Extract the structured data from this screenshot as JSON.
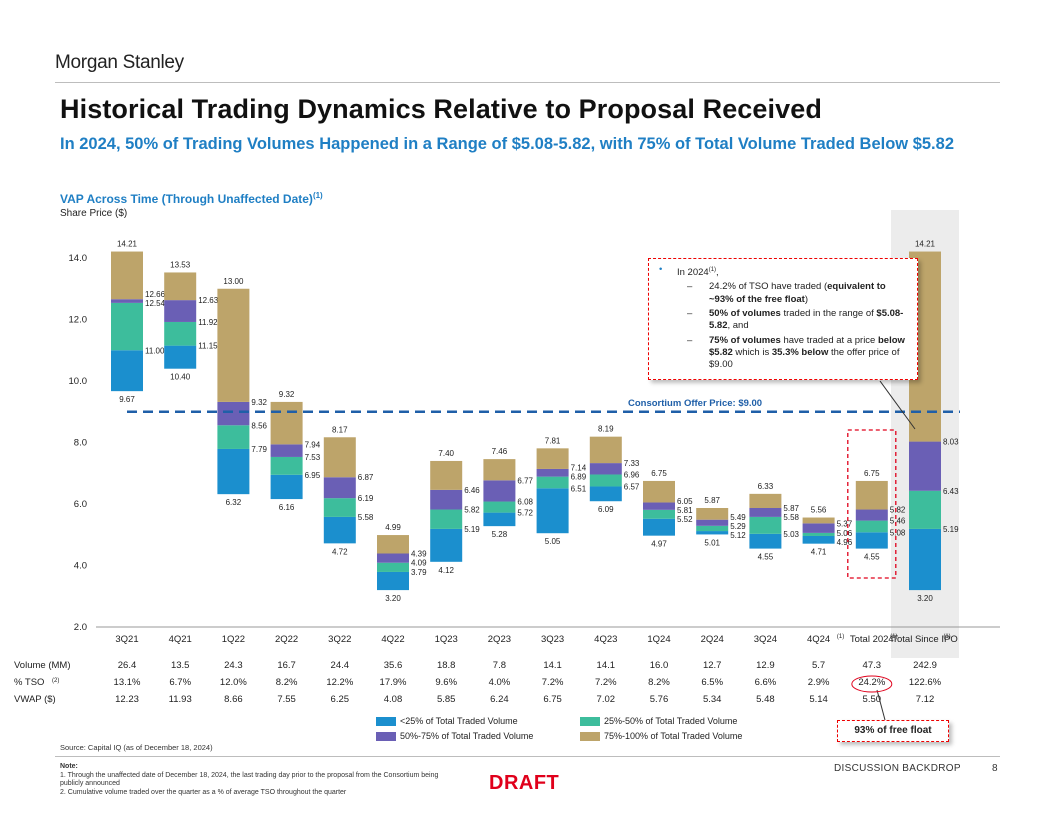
{
  "header": {
    "logo": "Morgan Stanley",
    "title": "Historical Trading Dynamics Relative to Proposal Received",
    "subtitle": "In 2024, 50% of Trading Volumes Happened in a Range of $5.08-5.82, with 75% of Total Volume Traded Below $5.82",
    "chart_heading": "VAP Across Time (Through Unaffected Date)",
    "chart_heading_sup": "(1)",
    "axis_unit": "Share Price ($)"
  },
  "colors": {
    "q1": "#1b8fce",
    "q2": "#3dbd9c",
    "q3": "#6a5fb5",
    "q4": "#bda46a",
    "offer_line": "#1f5fa8",
    "accent_text": "#1f7fc4",
    "highlight_bg": "#ececec",
    "red": "#e0001b"
  },
  "chart_data": {
    "type": "bar",
    "subtype": "floating-stacked-range",
    "ylim": [
      2.0,
      14.0
    ],
    "y_ticks": [
      "2.0",
      "4.0",
      "6.0",
      "8.0",
      "10.0",
      "12.0",
      "14.0"
    ],
    "segment_legend": [
      "<25% of Total Traded Volume",
      "25%-50% of Total Traded Volume",
      "50%-75% of Total Traded Volume",
      "75%-100% of Total Traded Volume"
    ],
    "categories": [
      "3Q21",
      "4Q21",
      "1Q22",
      "2Q22",
      "3Q22",
      "4Q22",
      "1Q23",
      "2Q23",
      "3Q23",
      "4Q23",
      "1Q24",
      "2Q24",
      "3Q24",
      "4Q24",
      "Total 2024",
      "Total Since IPO"
    ],
    "category_sups": [
      "",
      "",
      "",
      "",
      "",
      "",
      "",
      "",
      "",
      "",
      "",
      "",
      "",
      "(1)",
      "(1)",
      "(1)"
    ],
    "bars": [
      {
        "low": 9.67,
        "p25": 11.0,
        "p50": 12.54,
        "p75": 12.66,
        "high": 14.21
      },
      {
        "low": 10.4,
        "p25": 11.15,
        "p50": 11.92,
        "p75": 12.63,
        "high": 13.53
      },
      {
        "low": 6.32,
        "p25": 7.79,
        "p50": 8.56,
        "p75": 9.32,
        "high": 13.0
      },
      {
        "low": 6.16,
        "p25": 6.95,
        "p50": 7.53,
        "p75": 7.94,
        "high": 9.32
      },
      {
        "low": 4.72,
        "p25": 5.58,
        "p50": 6.19,
        "p75": 6.87,
        "high": 8.17
      },
      {
        "low": 3.2,
        "p25": 3.79,
        "p50": 4.09,
        "p75": 4.39,
        "high": 4.99
      },
      {
        "low": 4.12,
        "p25": 5.19,
        "p50": 5.82,
        "p75": 6.46,
        "high": 7.4
      },
      {
        "low": 5.28,
        "p25": 5.72,
        "p50": 6.08,
        "p75": 6.77,
        "high": 7.46
      },
      {
        "low": 5.05,
        "p25": 6.51,
        "p50": 6.89,
        "p75": 7.14,
        "high": 7.81
      },
      {
        "low": 6.09,
        "p25": 6.57,
        "p50": 6.96,
        "p75": 7.33,
        "high": 8.19
      },
      {
        "low": 4.97,
        "p25": 5.52,
        "p50": 5.81,
        "p75": 6.05,
        "high": 6.75
      },
      {
        "low": 5.01,
        "p25": 5.12,
        "p50": 5.29,
        "p75": 5.49,
        "high": 5.87
      },
      {
        "low": 4.55,
        "p25": 5.03,
        "p50": 5.58,
        "p75": 5.87,
        "high": 6.33
      },
      {
        "low": 4.71,
        "p25": 4.96,
        "p50": 5.06,
        "p75": 5.37,
        "high": 5.56
      },
      {
        "low": 4.55,
        "p25": 5.08,
        "p50": 5.46,
        "p75": 5.82,
        "high": 6.75
      },
      {
        "low": 3.2,
        "p25": 5.19,
        "p50": 6.43,
        "p75": 8.03,
        "high": 14.21
      }
    ],
    "offer_price": 9.0,
    "offer_label": "Consortium Offer Price: $9.00"
  },
  "table": {
    "rows": [
      {
        "label": "Volume (MM)",
        "sup": "",
        "values": [
          "26.4",
          "13.5",
          "24.3",
          "16.7",
          "24.4",
          "35.6",
          "18.8",
          "7.8",
          "14.1",
          "14.1",
          "16.0",
          "12.7",
          "12.9",
          "5.7",
          "47.3",
          "242.9"
        ]
      },
      {
        "label": "% TSO",
        "sup": "(2)",
        "values": [
          "13.1%",
          "6.7%",
          "12.0%",
          "8.2%",
          "12.2%",
          "17.9%",
          "9.6%",
          "4.0%",
          "7.2%",
          "7.2%",
          "8.2%",
          "6.5%",
          "6.6%",
          "2.9%",
          "24.2%",
          "122.6%"
        ]
      },
      {
        "label": "VWAP ($)",
        "sup": "",
        "values": [
          "12.23",
          "11.93",
          "8.66",
          "7.55",
          "6.25",
          "4.08",
          "5.85",
          "6.24",
          "6.75",
          "7.02",
          "5.76",
          "5.34",
          "5.48",
          "5.14",
          "5.50",
          "7.12"
        ]
      }
    ]
  },
  "callout": {
    "bullet": "In 2024",
    "bullet_sup": "(1)",
    "bullet_tail": ",",
    "items": [
      {
        "lead": "24.2% of TSO have traded (",
        "bold": "equivalent to ~93% of the free float",
        "tail": ")"
      },
      {
        "lead": "",
        "bold": "50% of volumes",
        "tail": " traded in the range of ",
        "bold2": "$5.08-5.82",
        "tail2": ", and"
      },
      {
        "lead": "",
        "bold": "75% of volumes",
        "tail": " have traded at a price ",
        "bold2": "below $5.82",
        "tail2": " which is ",
        "bold3": "35.3% below",
        "tail3": " the offer price of $9.00"
      }
    ]
  },
  "float_note": "93% of free float",
  "footer": {
    "source": "Source: Capital IQ (as of December 18, 2024)",
    "note_heading": "Note:",
    "notes": [
      "1.  Through the unaffected date of December 18, 2024, the last trading day prior to the proposal from the Consortium being publicly announced",
      "2.  Cumulative volume traded over the quarter as a % of average TSO throughout the quarter"
    ],
    "draft": "DRAFT",
    "discussion": "DISCUSSION BACKDROP",
    "page": "8"
  }
}
